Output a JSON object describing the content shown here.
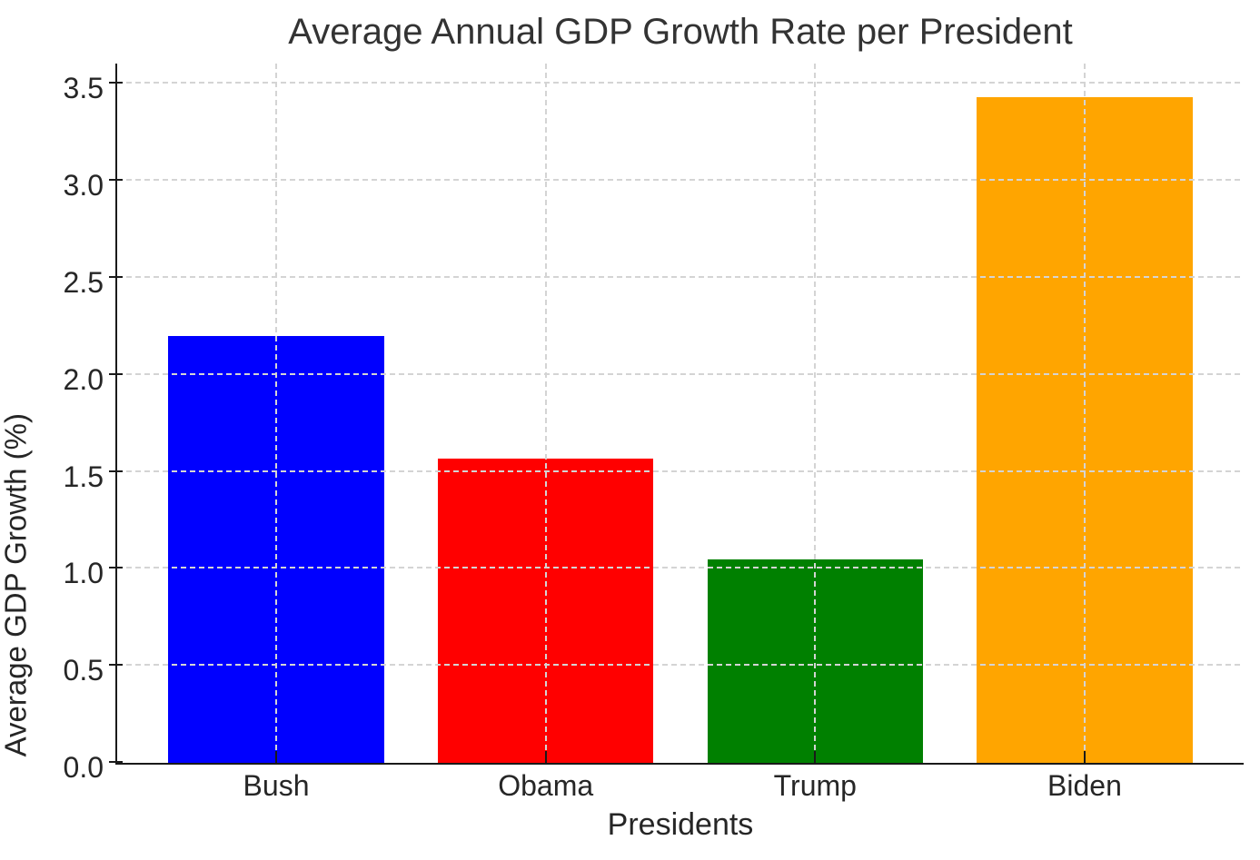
{
  "figure": {
    "background": "#ffffff",
    "title_color": "#333333",
    "text_color": "#262626",
    "spine_color": "#1a1a1a",
    "grid_color": "#d4d4d4"
  },
  "chart_data": {
    "type": "bar",
    "title": "Average Annual GDP Growth Rate per President",
    "xlabel": "Presidents",
    "ylabel": "Average GDP Growth (%)",
    "categories": [
      "Bush",
      "Obama",
      "Trump",
      "Biden"
    ],
    "values": [
      2.2,
      1.57,
      1.05,
      3.43
    ],
    "bar_colors": [
      "#0000ff",
      "#ff0000",
      "#008000",
      "#ffa500"
    ],
    "ylim": [
      0,
      3.6
    ],
    "ytick_labels": [
      "0.0",
      "0.5",
      "1.0",
      "1.5",
      "2.0",
      "2.5",
      "3.0",
      "3.5"
    ],
    "ytick_values": [
      0,
      0.5,
      1.0,
      1.5,
      2.0,
      2.5,
      3.0,
      3.5
    ],
    "grid": {
      "show": true,
      "axis": "both",
      "style": "dashed"
    },
    "legend": {
      "show": false
    },
    "bar_width_fraction": 0.8,
    "x_edge_margin": 0.59,
    "spines": {
      "top": false,
      "right": false,
      "left": true,
      "bottom": true
    }
  }
}
